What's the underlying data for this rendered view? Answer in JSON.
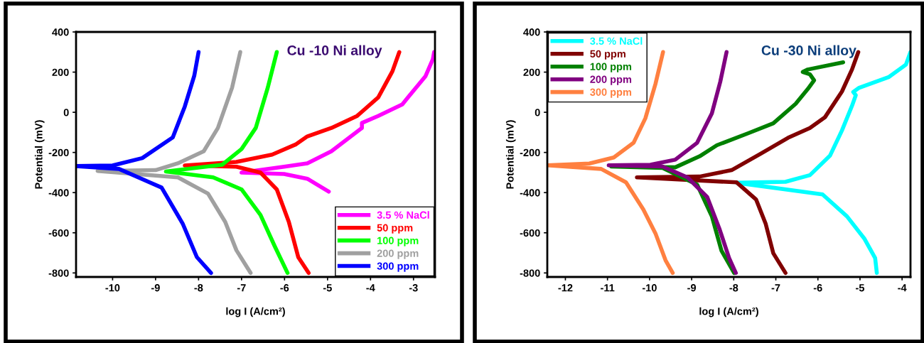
{
  "chart_data": [
    {
      "type": "line",
      "title": "Cu -10 Ni alloy",
      "xlabel": "log I (A/cm²)",
      "ylabel": "Potential (mV)",
      "xlim": [
        -10.85,
        -2.5
      ],
      "ylim": [
        -820,
        400
      ],
      "xticks": [
        -10,
        -9,
        -8,
        -7,
        -6,
        -5,
        -4,
        -3
      ],
      "yticks": [
        -800,
        -600,
        -400,
        -200,
        0,
        200,
        400
      ],
      "legend": "bottom right",
      "grid": false,
      "series": [
        {
          "name": "3.5 % NaCl",
          "color": "#ff00ff",
          "x": [
            -4.97,
            -5.47,
            -6.01,
            -7.0,
            -6.01,
            -5.47,
            -4.91,
            -4.2,
            -4.2,
            -3.82,
            -3.26,
            -3.13,
            -2.72,
            -2.55,
            -2.52
          ],
          "values": [
            -395,
            -331,
            -307,
            -300,
            -271,
            -254,
            -194,
            -78,
            -53,
            -18,
            39,
            74,
            180,
            264,
            300
          ]
        },
        {
          "name": "50 ppm",
          "color": "#ff0000",
          "x": [
            -5.44,
            -5.68,
            -5.9,
            -6.18,
            -6.56,
            -7.12,
            -8.32,
            -7.12,
            -6.29,
            -5.73,
            -5.47,
            -4.91,
            -4.31,
            -3.82,
            -3.49,
            -3.33
          ],
          "values": [
            -800,
            -722,
            -546,
            -384,
            -300,
            -271,
            -265,
            -247,
            -211,
            -159,
            -120,
            -78,
            -18,
            74,
            204,
            300
          ]
        },
        {
          "name": "100 ppm",
          "color": "#00ff00",
          "x": [
            -5.93,
            -6.23,
            -6.56,
            -7.0,
            -7.66,
            -8.76,
            -7.45,
            -7.0,
            -6.67,
            -6.39,
            -6.18
          ],
          "values": [
            -800,
            -666,
            -511,
            -384,
            -324,
            -295,
            -261,
            -183,
            -78,
            123,
            300
          ]
        },
        {
          "name": "200 ppm",
          "color": "#a0a0a0",
          "x": [
            -6.79,
            -7.12,
            -7.38,
            -7.78,
            -8.48,
            -10.35,
            -9.0,
            -8.48,
            -7.88,
            -7.55,
            -7.22,
            -7.03
          ],
          "values": [
            -800,
            -687,
            -546,
            -405,
            -324,
            -292,
            -288,
            -254,
            -194,
            -78,
            123,
            300
          ]
        },
        {
          "name": "300 ppm",
          "color": "#0000ff",
          "x": [
            -7.71,
            -8.04,
            -8.37,
            -8.86,
            -9.85,
            -10.85,
            -10.0,
            -9.31,
            -8.6,
            -8.32,
            -8.1,
            -8.0
          ],
          "values": [
            -800,
            -721,
            -554,
            -375,
            -282,
            -268,
            -265,
            -228,
            -125,
            29,
            182,
            300
          ]
        }
      ]
    },
    {
      "type": "line",
      "title": "Cu -30 Ni alloy",
      "xlabel": "log I (A/cm²)",
      "ylabel": "Potential (mV)",
      "xlim": [
        -12.43,
        -3.8
      ],
      "ylim": [
        -820,
        400
      ],
      "xticks": [
        -12,
        -11,
        -10,
        -9,
        -8,
        -7,
        -6,
        -5,
        -4
      ],
      "yticks": [
        -800,
        -600,
        -400,
        -200,
        0,
        200,
        400
      ],
      "legend": "top left",
      "grid": false,
      "series": [
        {
          "name": "3.5 % NaCl",
          "color": "#00ffff",
          "x": [
            -4.6,
            -4.64,
            -4.9,
            -5.31,
            -5.89,
            -7.93,
            -6.77,
            -6.19,
            -5.71,
            -5.43,
            -5.19,
            -5.1,
            -5.16,
            -5.02,
            -4.31,
            -3.91,
            -3.8
          ],
          "values": [
            -800,
            -726,
            -628,
            -518,
            -409,
            -351,
            -346,
            -313,
            -215,
            -91,
            32,
            85,
            101,
            122,
            176,
            237,
            300
          ]
        },
        {
          "name": "50 ppm",
          "color": "#800000",
          "x": [
            -6.77,
            -7.06,
            -7.24,
            -7.47,
            -7.93,
            -10.3,
            -8.81,
            -8.05,
            -7.35,
            -6.71,
            -6.19,
            -5.83,
            -5.43,
            -5.19,
            -5.04
          ],
          "values": [
            -800,
            -702,
            -556,
            -434,
            -349,
            -324,
            -320,
            -288,
            -205,
            -127,
            -78,
            -24,
            103,
            213,
            300
          ]
        },
        {
          "name": "100 ppm",
          "color": "#008000",
          "x": [
            -7.99,
            -8.29,
            -8.52,
            -8.87,
            -9.69,
            -10.91,
            -9.39,
            -8.81,
            -8.4,
            -7.64,
            -7.06,
            -6.53,
            -6.24,
            -6.09,
            -6.19,
            -6.36,
            -6.24,
            -5.4
          ],
          "values": [
            -800,
            -690,
            -518,
            -360,
            -277,
            -270,
            -274,
            -219,
            -164,
            -103,
            -55,
            42,
            116,
            159,
            189,
            201,
            213,
            249
          ]
        },
        {
          "name": "200 ppm",
          "color": "#800080",
          "x": [
            -7.95,
            -8.11,
            -8.34,
            -8.63,
            -9.1,
            -9.69,
            -10.97,
            -9.98,
            -9.39,
            -8.87,
            -8.52,
            -8.32,
            -8.17
          ],
          "values": [
            -800,
            -726,
            -580,
            -422,
            -324,
            -270,
            -264,
            -261,
            -236,
            -152,
            -6,
            152,
            300
          ]
        },
        {
          "name": "300 ppm",
          "color": "#ff8040",
          "x": [
            -9.45,
            -9.62,
            -9.86,
            -10.15,
            -10.56,
            -11.15,
            -12.43,
            -11.43,
            -10.85,
            -10.38,
            -10.1,
            -9.86,
            -9.68
          ],
          "values": [
            -800,
            -737,
            -603,
            -483,
            -349,
            -282,
            -264,
            -255,
            -225,
            -152,
            -30,
            141,
            300
          ]
        }
      ]
    }
  ]
}
